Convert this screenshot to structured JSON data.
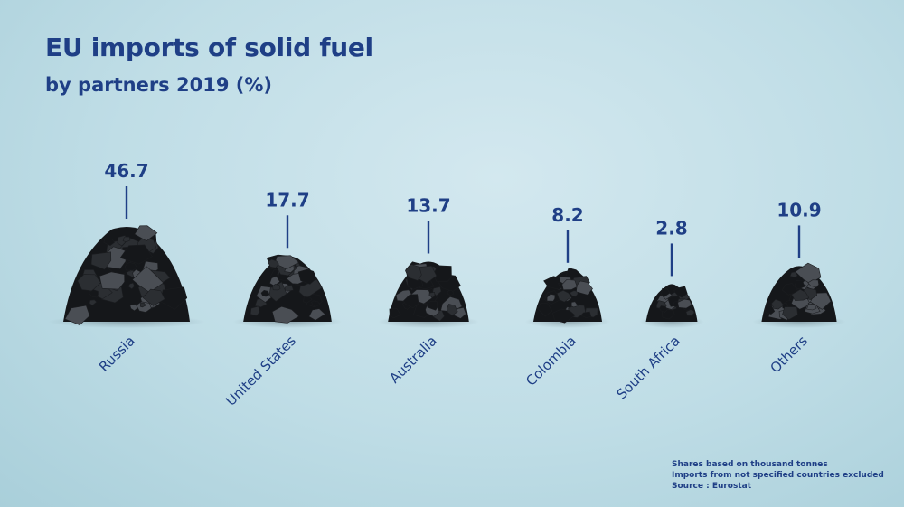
{
  "title": "EU imports of solid fuel",
  "subtitle": "by partners 2019 (%)",
  "notes": [
    "Shares based on thousand tonnes",
    "Imports from not specified countries excluded",
    "Source : Eurostat"
  ],
  "colors": {
    "text": "#1f3f86",
    "coal": "#2b2e32",
    "coal_light": "#4a4e54",
    "coal_dark": "#15171a"
  },
  "chart_data": {
    "type": "bar",
    "title": "EU imports of solid fuel",
    "subtitle": "by partners 2019 (%)",
    "categories": [
      "Russia",
      "United States",
      "Australia",
      "Colombia",
      "South Africa",
      "Others"
    ],
    "values": [
      46.7,
      17.7,
      13.7,
      8.2,
      2.8,
      10.9
    ],
    "unit": "%",
    "mark": "coal-pile",
    "grid": false,
    "legend": "none"
  }
}
